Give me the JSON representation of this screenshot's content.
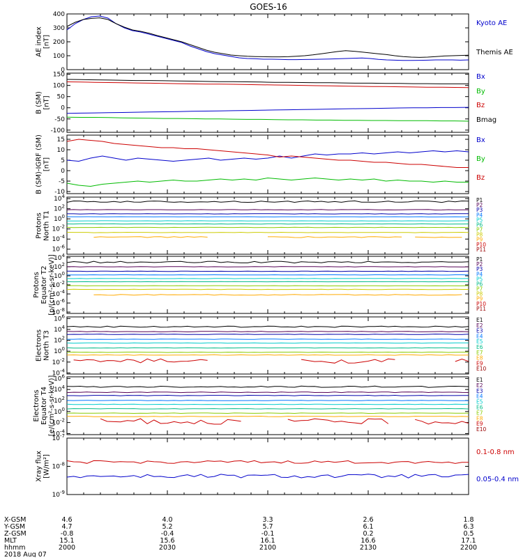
{
  "title": "GOES-16",
  "footer": {
    "row_labels": [
      "X-GSM",
      "Y-GSM",
      "Z-GSM",
      "MLT",
      "hhmm",
      "2018 Aug 07"
    ],
    "columns": [
      {
        "x_gsm": "4.6",
        "y_gsm": "4.7",
        "z_gsm": "-0.8",
        "mlt": "15.1",
        "hhmm": "2000"
      },
      {
        "x_gsm": "4.0",
        "y_gsm": "5.2",
        "z_gsm": "-0.4",
        "mlt": "15.6",
        "hhmm": "2030"
      },
      {
        "x_gsm": "3.3",
        "y_gsm": "5.7",
        "z_gsm": "-0.1",
        "mlt": "16.1",
        "hhmm": "2100"
      },
      {
        "x_gsm": "2.6",
        "y_gsm": "6.1",
        "z_gsm": "0.2",
        "mlt": "16.6",
        "hhmm": "2130"
      },
      {
        "x_gsm": "1.8",
        "y_gsm": "6.3",
        "z_gsm": "0.5",
        "mlt": "17.1",
        "hhmm": "2200"
      }
    ]
  },
  "chart_data": [
    {
      "id": "ae",
      "type": "line",
      "ylabel": [
        "AE index",
        "[nT]"
      ],
      "scale": "linear",
      "ylim": [
        0,
        400
      ],
      "yticks": [
        "0",
        "100",
        "200",
        "300",
        "400"
      ],
      "ytick_values": [
        0,
        100,
        200,
        300,
        400
      ],
      "xrange_min": [
        0,
        120
      ],
      "series": [
        {
          "name": "Kyoto AE",
          "color": "#0000cc",
          "values": [
            285,
            330,
            360,
            380,
            385,
            370,
            330,
            300,
            280,
            270,
            255,
            240,
            225,
            210,
            195,
            170,
            150,
            130,
            115,
            105,
            95,
            85,
            80,
            78,
            75,
            75,
            74,
            72,
            72,
            73,
            74,
            75,
            76,
            78,
            80,
            82,
            84,
            80,
            74,
            70,
            68,
            66,
            66,
            67,
            68,
            70,
            70,
            70,
            68,
            70
          ]
        },
        {
          "name": "Themis AE",
          "color": "#000000",
          "values": [
            310,
            340,
            360,
            368,
            372,
            360,
            330,
            305,
            285,
            275,
            262,
            245,
            230,
            215,
            200,
            180,
            160,
            140,
            125,
            115,
            105,
            100,
            96,
            94,
            93,
            92,
            92,
            93,
            96,
            100,
            106,
            114,
            122,
            130,
            136,
            132,
            126,
            120,
            114,
            108,
            100,
            94,
            90,
            88,
            90,
            94,
            98,
            100,
            102,
            104
          ]
        }
      ]
    },
    {
      "id": "bsm",
      "type": "line",
      "ylabel": [
        "B (SM)",
        "[nT]"
      ],
      "scale": "linear",
      "ylim": [
        -110,
        155
      ],
      "yticks": [
        "-100",
        "-50",
        "0",
        "50",
        "100",
        "150"
      ],
      "ytick_values": [
        -100,
        -50,
        0,
        50,
        100,
        150
      ],
      "xrange_min": [
        0,
        120
      ],
      "series": [
        {
          "name": "Bx",
          "color": "#0000cc",
          "values": [
            -25,
            -24,
            -23,
            -22,
            -21,
            -20,
            -19,
            -18,
            -17,
            -16,
            -15,
            -14,
            -13,
            -12,
            -11,
            -10,
            -9,
            -8,
            -7,
            -6,
            -5,
            -4,
            -3,
            -2,
            -1,
            0,
            0,
            1,
            1,
            2
          ]
        },
        {
          "name": "By",
          "color": "#00bb00",
          "values": [
            -42,
            -43,
            -43,
            -44,
            -45,
            -46,
            -47,
            -48,
            -48,
            -49,
            -50,
            -50,
            -51,
            -52,
            -52,
            -53,
            -54,
            -54,
            -55,
            -55,
            -56,
            -56,
            -57,
            -57,
            -58,
            -58,
            -58,
            -59,
            -59,
            -60
          ]
        },
        {
          "name": "Bz",
          "color": "#cc0000",
          "values": [
            116,
            115,
            114,
            113,
            112,
            111,
            110,
            109,
            108,
            107,
            106,
            106,
            105,
            104,
            103,
            102,
            101,
            100,
            99,
            98,
            97,
            96,
            95,
            95,
            94,
            93,
            92,
            92,
            91,
            90
          ]
        },
        {
          "name": "Bmag",
          "color": "#000000",
          "values": [
            127,
            126,
            125,
            124,
            123,
            122,
            122,
            121,
            120,
            119,
            118,
            117,
            117,
            116,
            115,
            114,
            114,
            113,
            112,
            112,
            111,
            110,
            110,
            109,
            109,
            108,
            108,
            107,
            107,
            107
          ]
        }
      ]
    },
    {
      "id": "bigrf",
      "type": "line",
      "ylabel": [
        "B (SM)-IGRF (SM)",
        "[nT]"
      ],
      "scale": "linear",
      "ylim": [
        -11,
        17
      ],
      "yticks": [
        "-10",
        "-5",
        "0",
        "5",
        "10",
        "15"
      ],
      "ytick_values": [
        -10,
        -5,
        0,
        5,
        10,
        15
      ],
      "xrange_min": [
        0,
        120
      ],
      "series": [
        {
          "name": "Bx",
          "color": "#0000cc",
          "values": [
            5,
            4.5,
            6,
            7,
            6,
            5,
            6,
            5.5,
            5,
            4.5,
            5,
            5.5,
            6,
            5,
            5.5,
            6,
            5.5,
            6,
            7,
            6,
            7,
            8,
            7.5,
            8,
            8,
            8.5,
            8,
            8.5,
            9,
            8.5,
            9,
            9.5,
            9,
            9.5,
            9
          ]
        },
        {
          "name": "By",
          "color": "#00bb00",
          "values": [
            -6,
            -7,
            -7.5,
            -6.5,
            -6,
            -5.5,
            -5,
            -5.5,
            -5,
            -4.5,
            -5,
            -5,
            -4.5,
            -4,
            -4.5,
            -4,
            -4.5,
            -3.5,
            -4,
            -4.5,
            -4,
            -3.5,
            -4,
            -4.5,
            -4,
            -4.5,
            -4,
            -5,
            -4.5,
            -5,
            -5,
            -5.5,
            -5,
            -5.5,
            -5.5
          ]
        },
        {
          "name": "Bz",
          "color": "#cc0000",
          "values": [
            14,
            15,
            14.5,
            14,
            13,
            12.5,
            12,
            11.5,
            11,
            11,
            10.5,
            10.5,
            10,
            9.5,
            9,
            8.5,
            8,
            7.5,
            6.5,
            7,
            6.5,
            6,
            5.5,
            5,
            5,
            4.5,
            4,
            4,
            3.5,
            3,
            3,
            2.5,
            2,
            1.5,
            1.5
          ]
        }
      ]
    },
    {
      "id": "pn",
      "type": "line",
      "ylabel": [
        "Protons",
        "North T1"
      ],
      "scale": "log",
      "ylim": [
        -7,
        4.3
      ],
      "yticks": [
        "10^4",
        "10^2",
        "10^0",
        "10^-2",
        "10^-4",
        "10^-6"
      ],
      "ytick_values": [
        4,
        2,
        0,
        -2,
        -4,
        -6
      ],
      "xrange_min": [
        0,
        120
      ],
      "series": [
        {
          "name": "P1",
          "color": "#000000",
          "level": 3.4,
          "jitter": 0.15
        },
        {
          "name": "P2",
          "color": "#550055",
          "level": 1.8,
          "jitter": 0.05
        },
        {
          "name": "P3",
          "color": "#0000aa",
          "level": 1.0,
          "jitter": 0.04
        },
        {
          "name": "P4",
          "color": "#0077ff",
          "level": 0.4,
          "jitter": 0.03
        },
        {
          "name": "P5",
          "color": "#00cccc",
          "level": -0.4,
          "jitter": 0.03
        },
        {
          "name": "P6",
          "color": "#00bb88",
          "level": -1.0,
          "jitter": 0.03
        },
        {
          "name": "P7",
          "color": "#88cc00",
          "level": -1.7,
          "jitter": 0.03
        },
        {
          "name": "P8",
          "color": "#cccc00",
          "level": -2.7,
          "jitter": 0.04
        },
        {
          "name": "P9",
          "color": "#ffaa00",
          "level": -3.6,
          "jitter": 0.1,
          "segments": [
            [
              8,
              42
            ],
            [
              60,
              100
            ],
            [
              104,
              118
            ]
          ]
        },
        {
          "name": "P10",
          "color": "#cc0000",
          "level": null
        },
        {
          "name": "P11",
          "color": "#990000",
          "level": null
        }
      ]
    },
    {
      "id": "pe",
      "type": "line",
      "ylabel": [
        "Protons",
        "Equator T2",
        "[p/(cm²-s-sr-keV)]"
      ],
      "scale": "log",
      "ylim": [
        -8.3,
        4.3
      ],
      "yticks": [
        "10^4",
        "10^2",
        "10^0",
        "10^-2",
        "10^-4",
        "10^-6",
        "10^-8"
      ],
      "ytick_values": [
        4,
        2,
        0,
        -2,
        -4,
        -6,
        -8
      ],
      "xrange_min": [
        0,
        120
      ],
      "series": [
        {
          "name": "P1",
          "color": "#000000",
          "level": 3.0,
          "jitter": 0.2
        },
        {
          "name": "P2",
          "color": "#550055",
          "level": 2.0,
          "jitter": 0.05
        },
        {
          "name": "P3",
          "color": "#0000aa",
          "level": 1.0,
          "jitter": 0.04
        },
        {
          "name": "P4",
          "color": "#0077ff",
          "level": 0.2,
          "jitter": 0.03
        },
        {
          "name": "P5",
          "color": "#00cccc",
          "level": -0.6,
          "jitter": 0.03
        },
        {
          "name": "P6",
          "color": "#00bb88",
          "level": -1.3,
          "jitter": 0.03
        },
        {
          "name": "P7",
          "color": "#88cc00",
          "level": -2.2,
          "jitter": 0.03
        },
        {
          "name": "P8",
          "color": "#cccc00",
          "level": -3.0,
          "jitter": 0.05
        },
        {
          "name": "P9",
          "color": "#ffaa00",
          "level": -4.2,
          "jitter": 0.1,
          "segments": [
            [
              8,
              118
            ]
          ]
        },
        {
          "name": "P10",
          "color": "#cc0000",
          "level": null
        },
        {
          "name": "P11",
          "color": "#990000",
          "level": null
        }
      ]
    },
    {
      "id": "en",
      "type": "line",
      "ylabel": [
        "Electrons",
        "North T3"
      ],
      "scale": "log",
      "ylim": [
        -4.2,
        6.3
      ],
      "yticks": [
        "10^6",
        "10^4",
        "10^2",
        "10^0",
        "10^-2",
        "10^-4"
      ],
      "ytick_values": [
        6,
        4,
        2,
        0,
        -2,
        -4
      ],
      "xrange_min": [
        0,
        120
      ],
      "series": [
        {
          "name": "E1",
          "color": "#000000",
          "level": 4.5,
          "jitter": 0.12
        },
        {
          "name": "E2",
          "color": "#550055",
          "level": 3.6,
          "jitter": 0.06
        },
        {
          "name": "E3",
          "color": "#0000aa",
          "level": 3.1,
          "jitter": 0.05
        },
        {
          "name": "E4",
          "color": "#0077ff",
          "level": 2.2,
          "jitter": 0.04
        },
        {
          "name": "E5",
          "color": "#00cccc",
          "level": 1.5,
          "jitter": 0.04
        },
        {
          "name": "E6",
          "color": "#00bb88",
          "level": 0.6,
          "jitter": 0.04
        },
        {
          "name": "E7",
          "color": "#88cc00",
          "level": -0.2,
          "jitter": 0.04
        },
        {
          "name": "E8",
          "color": "#ffaa00",
          "level": -0.7,
          "jitter": 0.05
        },
        {
          "name": "E9",
          "color": "#cc0000",
          "level": -1.8,
          "jitter": 0.4,
          "segments": [
            [
              2,
              42
            ],
            [
              70,
              98
            ],
            [
              116,
              120
            ]
          ]
        },
        {
          "name": "E10",
          "color": "#990000",
          "level": null
        }
      ]
    },
    {
      "id": "ee",
      "type": "line",
      "ylabel": [
        "Electrons",
        "Equator T4",
        "[e/(cm²-s-sr-keV)]"
      ],
      "scale": "log",
      "ylim": [
        -4.2,
        6.3
      ],
      "yticks": [
        "10^6",
        "10^4",
        "10^2",
        "10^0",
        "10^-2",
        "10^-4"
      ],
      "ytick_values": [
        6,
        4,
        2,
        0,
        -2,
        -4
      ],
      "xrange_min": [
        0,
        120
      ],
      "series": [
        {
          "name": "E1",
          "color": "#000000",
          "level": 4.5,
          "jitter": 0.12
        },
        {
          "name": "E2",
          "color": "#550055",
          "level": 3.5,
          "jitter": 0.06
        },
        {
          "name": "E3",
          "color": "#0000aa",
          "level": 2.9,
          "jitter": 0.05
        },
        {
          "name": "E4",
          "color": "#0077ff",
          "level": 2.0,
          "jitter": 0.04
        },
        {
          "name": "E5",
          "color": "#00cccc",
          "level": 1.3,
          "jitter": 0.04
        },
        {
          "name": "E6",
          "color": "#00bb88",
          "level": 0.5,
          "jitter": 0.04
        },
        {
          "name": "E7",
          "color": "#88cc00",
          "level": -0.3,
          "jitter": 0.04
        },
        {
          "name": "E8",
          "color": "#ffaa00",
          "level": -0.9,
          "jitter": 0.05
        },
        {
          "name": "E9",
          "color": "#cc0000",
          "level": -1.8,
          "jitter": 0.5,
          "segments": [
            [
              10,
              52
            ],
            [
              66,
              96
            ],
            [
              104,
              120
            ]
          ]
        },
        {
          "name": "E10",
          "color": "#990000",
          "level": null
        }
      ]
    },
    {
      "id": "xray",
      "type": "line",
      "ylabel": [
        "Xray flux",
        "[W/m²]"
      ],
      "scale": "log",
      "ylim": [
        -9,
        -7
      ],
      "yticks": [
        "10^-7",
        "10^-8",
        "10^-9"
      ],
      "ytick_values": [
        -7,
        -8,
        -9
      ],
      "xrange_min": [
        0,
        120
      ],
      "series": [
        {
          "name": "0.1-0.8 nm",
          "color": "#cc0000",
          "level": -7.85,
          "jitter": 0.05
        },
        {
          "name": "0.05-0.4 nm",
          "color": "#0000cc",
          "level": -8.35,
          "jitter": 0.07
        }
      ]
    }
  ]
}
